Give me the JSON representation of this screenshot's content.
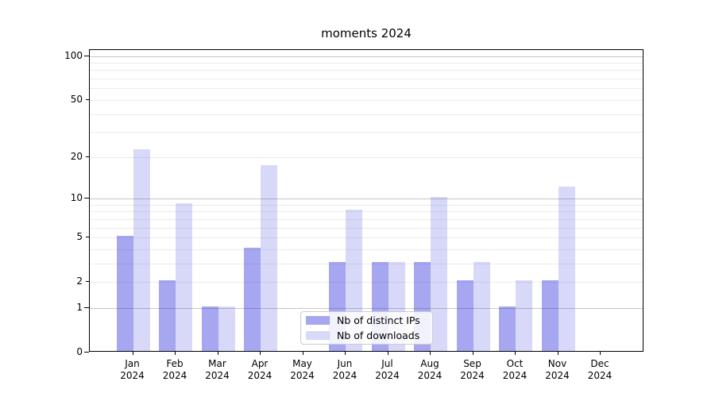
{
  "title": "moments 2024",
  "colors": {
    "ips_bar": "rgba(40,40,220,0.41)",
    "downloads_bar": "rgba(40,40,220,0.18)",
    "major_grid": "#c6c6c6",
    "minor_grid": "#ececec",
    "axis": "#000000",
    "legend_border": "#cccccc"
  },
  "legend": {
    "items": [
      {
        "label": "Nb of distinct IPs",
        "color_key": "ips_bar"
      },
      {
        "label": "Nb of downloads",
        "color_key": "downloads_bar"
      }
    ]
  },
  "axes": {
    "y_ticks": [
      {
        "value": 100,
        "label": "100"
      },
      {
        "value": 50,
        "label": "50"
      },
      {
        "value": 20,
        "label": "20"
      },
      {
        "value": 10,
        "label": "10"
      },
      {
        "value": 5,
        "label": "5"
      },
      {
        "value": 2,
        "label": "2"
      },
      {
        "value": 1,
        "label": "1"
      },
      {
        "value": 0,
        "label": "0"
      }
    ],
    "y_major_gridlines": [
      1,
      10,
      100
    ],
    "y_minor_gridlines": [
      2,
      3,
      4,
      5,
      6,
      7,
      8,
      9,
      20,
      30,
      40,
      50,
      60,
      70,
      80,
      90
    ]
  },
  "chart_data": {
    "type": "bar",
    "title": "moments 2024",
    "categories": [
      "Jan 2024",
      "Feb 2024",
      "Mar 2024",
      "Apr 2024",
      "May 2024",
      "Jun 2024",
      "Jul 2024",
      "Aug 2024",
      "Sep 2024",
      "Oct 2024",
      "Nov 2024",
      "Dec 2024"
    ],
    "series": [
      {
        "name": "Nb of distinct IPs",
        "values": [
          5,
          2,
          1,
          4,
          0,
          3,
          3,
          3,
          2,
          1,
          2,
          0
        ]
      },
      {
        "name": "Nb of downloads",
        "values": [
          22,
          9,
          1,
          17,
          0,
          8,
          3,
          10,
          3,
          2,
          12,
          0
        ]
      }
    ],
    "xlabel": "",
    "ylabel": "",
    "yscale": "log1p",
    "ylim": [
      0,
      110
    ],
    "grid": "both",
    "legend_position": "lower center"
  }
}
